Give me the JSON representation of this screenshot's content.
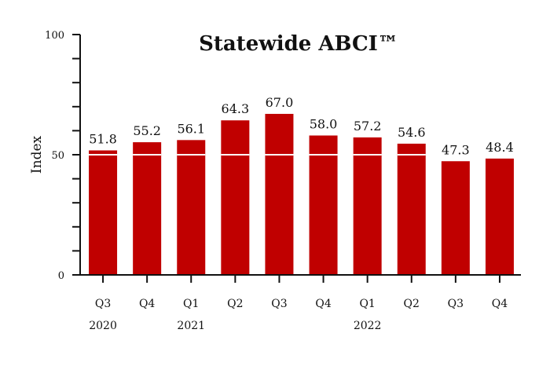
{
  "chart_data": {
    "type": "bar",
    "title": "Statewide ABCI™",
    "ylabel": "Index",
    "xlabel": "",
    "ylim": [
      0,
      100
    ],
    "yticks": [
      0,
      50,
      100
    ],
    "reference_line": 50,
    "categories": [
      "Q3",
      "Q4",
      "Q1",
      "Q2",
      "Q3",
      "Q4",
      "Q1",
      "Q2",
      "Q3",
      "Q4"
    ],
    "years": [
      {
        "label": "2020",
        "index": 0
      },
      {
        "label": "2021",
        "index": 2
      },
      {
        "label": "2022",
        "index": 6
      }
    ],
    "values": [
      51.8,
      55.2,
      56.1,
      64.3,
      67.0,
      58.0,
      57.2,
      54.6,
      47.3,
      48.4
    ],
    "value_labels": [
      "51.8",
      "55.2",
      "56.1",
      "64.3",
      "67.0",
      "58.0",
      "57.2",
      "54.6",
      "47.3",
      "48.4"
    ],
    "bar_color": "#c00000",
    "reference_line_color": "#ffffff",
    "grid": false,
    "legend": "none"
  }
}
